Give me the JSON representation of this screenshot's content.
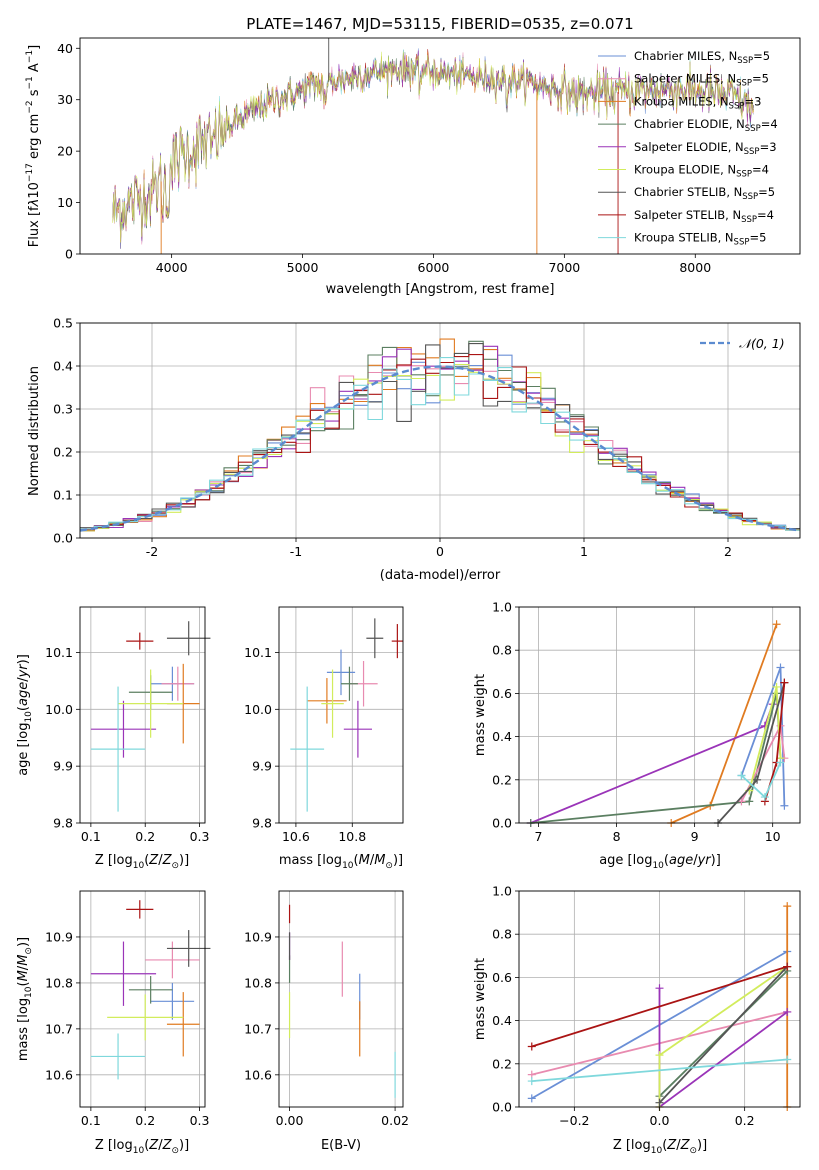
{
  "colors": {
    "Chabrier MILES": "#6a8fd6",
    "Salpeter MILES": "#e88bb0",
    "Kroupa MILES": "#e07b21",
    "Chabrier ELODIE": "#5b7f61",
    "Salpeter ELODIE": "#9a34b8",
    "Kroupa ELODIE": "#d2ec5c",
    "Chabrier STELIB": "#555555",
    "Salpeter STELIB": "#aa1414",
    "Kroupa STELIB": "#7fd8dc",
    "norm_curve": "#5b8bd0"
  },
  "chart_data": [
    {
      "id": "spectrum",
      "type": "line",
      "title": "PLATE=1467, MJD=53115, FIBERID=0535, z=0.071",
      "xlabel": "wavelength [Angstrom, rest frame]",
      "ylabel": "Flux [f_λ 10^-17 erg cm^-2 s^-1 A^-1]",
      "xlim": [
        3300,
        8800
      ],
      "ylim": [
        0,
        42
      ],
      "xticks": [
        4000,
        5000,
        6000,
        7000,
        8000
      ],
      "yticks": [
        0,
        10,
        20,
        30,
        40
      ],
      "grid": false,
      "legend_position": "top-right",
      "legend": [
        {
          "model": "Chabrier MILES",
          "n": "5"
        },
        {
          "model": "Salpeter MILES",
          "n": "5"
        },
        {
          "model": "Kroupa MILES",
          "n": "3"
        },
        {
          "model": "Chabrier ELODIE",
          "n": "4"
        },
        {
          "model": "Salpeter ELODIE",
          "n": "3"
        },
        {
          "model": "Kroupa ELODIE",
          "n": "4"
        },
        {
          "model": "Chabrier STELIB",
          "n": "5"
        },
        {
          "model": "Salpeter STELIB",
          "n": "4"
        },
        {
          "model": "Kroupa STELIB",
          "n": "5"
        }
      ],
      "continuum": {
        "x": [
          3550,
          3700,
          3850,
          3950,
          4050,
          4200,
          4350,
          4500,
          4700,
          4900,
          5100,
          5300,
          5500,
          5700,
          5900,
          6100,
          6300,
          6500,
          6700,
          6900,
          7100,
          7300,
          7500,
          7700,
          7900,
          8100,
          8300,
          8450
        ],
        "y": [
          8,
          10,
          12,
          15,
          19,
          21,
          23,
          26,
          29,
          31,
          33,
          34,
          35,
          36,
          36,
          35,
          34.5,
          34,
          33.5,
          32.5,
          31,
          31.5,
          31.5,
          32,
          32,
          31.5,
          30.5,
          28
        ]
      },
      "spikes": [
        {
          "x": 5200,
          "y": 42
        },
        {
          "x": 3920,
          "y": 0
        },
        {
          "x": 6790,
          "y": 0
        },
        {
          "x": 7410,
          "y": 0
        }
      ]
    },
    {
      "id": "residual-histogram",
      "type": "histogram",
      "xlabel": "(data-model)/error",
      "ylabel": "Normed distribution",
      "xlim": [
        -2.5,
        2.5
      ],
      "ylim": [
        0,
        0.5
      ],
      "xticks": [
        -2,
        -1,
        0,
        1,
        2
      ],
      "yticks": [
        0.0,
        0.1,
        0.2,
        0.3,
        0.4,
        0.5
      ],
      "grid": true,
      "legend_position": "top-right",
      "legend": [
        "𝒩(0, 1)"
      ],
      "bin_width": 0.1,
      "reference_curve": "standard normal pdf"
    },
    {
      "id": "age-vs-Z",
      "type": "errorbar",
      "xlabel": "Z [log10(Z/Z⊙)]",
      "ylabel": "age [log10(age/yr)]",
      "xlim": [
        0.08,
        0.31
      ],
      "ylim": [
        9.8,
        10.18
      ],
      "xticks": [
        0.1,
        0.2,
        0.3
      ],
      "yticks": [
        9.8,
        9.9,
        10.0,
        10.1
      ],
      "grid": true,
      "points": [
        {
          "model": "Chabrier MILES",
          "x": 0.25,
          "xerr": 0.04,
          "y": 10.045,
          "yerr": 0.03
        },
        {
          "model": "Salpeter MILES",
          "x": 0.26,
          "xerr": 0.03,
          "y": 10.045,
          "yerr": 0.03
        },
        {
          "model": "Kroupa MILES",
          "x": 0.27,
          "xerr": 0.03,
          "y": 10.01,
          "yerr": 0.07
        },
        {
          "model": "Chabrier ELODIE",
          "x": 0.21,
          "xerr": 0.04,
          "y": 10.03,
          "yerr": 0.03
        },
        {
          "model": "Salpeter ELODIE",
          "x": 0.16,
          "xerr": 0.06,
          "y": 9.965,
          "yerr": 0.05
        },
        {
          "model": "Kroupa ELODIE",
          "x": 0.21,
          "xerr": 0.06,
          "y": 10.01,
          "yerr": 0.06
        },
        {
          "model": "Chabrier STELIB",
          "x": 0.28,
          "xerr": 0.04,
          "y": 10.125,
          "yerr": 0.03
        },
        {
          "model": "Salpeter STELIB",
          "x": 0.19,
          "xerr": 0.025,
          "y": 10.12,
          "yerr": 0.015
        },
        {
          "model": "Kroupa STELIB",
          "x": 0.15,
          "xerr": 0.05,
          "y": 9.93,
          "yerr": 0.11
        }
      ]
    },
    {
      "id": "age-vs-mass",
      "type": "errorbar",
      "xlabel": "mass [log10(M/M⊙)]",
      "ylabel": "",
      "xlim": [
        10.54,
        10.98
      ],
      "ylim": [
        9.8,
        10.18
      ],
      "xticks": [
        10.6,
        10.8
      ],
      "yticks": [
        9.8,
        9.9,
        10.0,
        10.1
      ],
      "grid": true,
      "points": [
        {
          "model": "Chabrier MILES",
          "x": 10.76,
          "xerr": 0.05,
          "y": 10.065,
          "yerr": 0.04
        },
        {
          "model": "Salpeter MILES",
          "x": 10.84,
          "xerr": 0.05,
          "y": 10.045,
          "yerr": 0.04
        },
        {
          "model": "Kroupa MILES",
          "x": 10.71,
          "xerr": 0.07,
          "y": 10.015,
          "yerr": 0.04
        },
        {
          "model": "Chabrier ELODIE",
          "x": 10.79,
          "xerr": 0.03,
          "y": 10.045,
          "yerr": 0.03
        },
        {
          "model": "Salpeter ELODIE",
          "x": 10.82,
          "xerr": 0.05,
          "y": 9.965,
          "yerr": 0.05
        },
        {
          "model": "Kroupa ELODIE",
          "x": 10.73,
          "xerr": 0.04,
          "y": 10.01,
          "yerr": 0.06
        },
        {
          "model": "Chabrier STELIB",
          "x": 10.88,
          "xerr": 0.03,
          "y": 10.125,
          "yerr": 0.035
        },
        {
          "model": "Salpeter STELIB",
          "x": 10.96,
          "xerr": 0.02,
          "y": 10.12,
          "yerr": 0.03
        },
        {
          "model": "Kroupa STELIB",
          "x": 10.64,
          "xerr": 0.06,
          "y": 9.93,
          "yerr": 0.11
        }
      ]
    },
    {
      "id": "mass-weight-vs-age",
      "type": "line",
      "xlabel": "age [log10(age/yr)]",
      "ylabel": "mass weight",
      "xlim": [
        6.75,
        10.35
      ],
      "ylim": [
        0,
        1.0
      ],
      "xticks": [
        7,
        8,
        9,
        10
      ],
      "yticks": [
        0.0,
        0.2,
        0.4,
        0.6,
        0.8,
        1.0
      ],
      "grid": true,
      "series": [
        {
          "model": "Kroupa MILES",
          "x": [
            8.7,
            9.2,
            10.05
          ],
          "y": [
            0.0,
            0.08,
            0.92
          ]
        },
        {
          "model": "Salpeter ELODIE",
          "x": [
            6.9,
            9.9,
            10.0
          ],
          "y": [
            0.0,
            0.45,
            0.55
          ]
        },
        {
          "model": "Chabrier ELODIE",
          "x": [
            6.9,
            9.7,
            10.05,
            10.1
          ],
          "y": [
            0.0,
            0.1,
            0.6,
            0.3
          ]
        },
        {
          "model": "Chabrier MILES",
          "x": [
            9.6,
            10.1,
            10.15
          ],
          "y": [
            0.22,
            0.72,
            0.08
          ]
        },
        {
          "model": "Salpeter MILES",
          "x": [
            9.6,
            10.1,
            10.15
          ],
          "y": [
            0.1,
            0.45,
            0.3
          ]
        },
        {
          "model": "Kroupa ELODIE",
          "x": [
            9.7,
            10.05,
            10.1
          ],
          "y": [
            0.15,
            0.63,
            0.3
          ]
        },
        {
          "model": "Chabrier STELIB",
          "x": [
            9.3,
            9.8,
            10.15
          ],
          "y": [
            0.0,
            0.2,
            0.65
          ]
        },
        {
          "model": "Salpeter STELIB",
          "x": [
            9.9,
            10.05,
            10.15
          ],
          "y": [
            0.1,
            0.28,
            0.65
          ]
        },
        {
          "model": "Kroupa STELIB",
          "x": [
            9.6,
            9.9,
            10.1
          ],
          "y": [
            0.22,
            0.12,
            0.28
          ]
        }
      ]
    },
    {
      "id": "mass-vs-Z",
      "type": "errorbar",
      "xlabel": "Z [log10(Z/Z⊙)]",
      "ylabel": "mass [log10(M/M⊙)]",
      "xlim": [
        0.08,
        0.31
      ],
      "ylim": [
        10.53,
        11.0
      ],
      "xticks": [
        0.1,
        0.2,
        0.3
      ],
      "yticks": [
        10.6,
        10.7,
        10.8,
        10.9
      ],
      "grid": true,
      "points": [
        {
          "model": "Chabrier MILES",
          "x": 0.25,
          "xerr": 0.04,
          "y": 10.76,
          "yerr": 0.04
        },
        {
          "model": "Salpeter MILES",
          "x": 0.25,
          "xerr": 0.05,
          "y": 10.85,
          "yerr": 0.04
        },
        {
          "model": "Kroupa MILES",
          "x": 0.27,
          "xerr": 0.03,
          "y": 10.71,
          "yerr": 0.07
        },
        {
          "model": "Chabrier ELODIE",
          "x": 0.21,
          "xerr": 0.04,
          "y": 10.785,
          "yerr": 0.03
        },
        {
          "model": "Salpeter ELODIE",
          "x": 0.16,
          "xerr": 0.06,
          "y": 10.82,
          "yerr": 0.07
        },
        {
          "model": "Kroupa ELODIE",
          "x": 0.2,
          "xerr": 0.07,
          "y": 10.725,
          "yerr": 0.05
        },
        {
          "model": "Chabrier STELIB",
          "x": 0.28,
          "xerr": 0.04,
          "y": 10.875,
          "yerr": 0.04
        },
        {
          "model": "Salpeter STELIB",
          "x": 0.19,
          "xerr": 0.025,
          "y": 10.96,
          "yerr": 0.02
        },
        {
          "model": "Kroupa STELIB",
          "x": 0.15,
          "xerr": 0.05,
          "y": 10.64,
          "yerr": 0.05
        }
      ]
    },
    {
      "id": "mass-vs-ebv",
      "type": "errorbar",
      "xlabel": "E(B-V)",
      "ylabel": "",
      "xlim": [
        -0.002,
        0.0215
      ],
      "ylim": [
        10.53,
        11.0
      ],
      "xticks": [
        0.0,
        0.02
      ],
      "xticklabels": [
        "0.00",
        "0.02"
      ],
      "yticks": [
        10.6,
        10.7,
        10.8,
        10.9
      ],
      "grid": true,
      "points": [
        {
          "model": "Chabrier MILES",
          "x": 0.0133,
          "y": 10.77,
          "yerr": 0.05
        },
        {
          "model": "Salpeter MILES",
          "x": 0.01,
          "y": 10.83,
          "yerr": 0.06
        },
        {
          "model": "Kroupa MILES",
          "x": 0.0133,
          "y": 10.7,
          "yerr": 0.06
        },
        {
          "model": "Chabrier ELODIE",
          "x": 0.0,
          "y": 10.83,
          "yerr": 0.03
        },
        {
          "model": "Salpeter ELODIE",
          "x": 0.0,
          "y": 10.88,
          "yerr": 0.03
        },
        {
          "model": "Kroupa ELODIE",
          "x": 0.0,
          "y": 10.73,
          "yerr": 0.05
        },
        {
          "model": "Chabrier STELIB",
          "x": 0.0,
          "y": 10.88,
          "yerr": 0.03
        },
        {
          "model": "Salpeter STELIB",
          "x": 0.0,
          "y": 10.95,
          "yerr": 0.02
        },
        {
          "model": "Kroupa STELIB",
          "x": 0.02,
          "y": 10.6,
          "yerr": 0.05
        }
      ]
    },
    {
      "id": "mass-weight-vs-Z",
      "type": "line",
      "xlabel": "Z [log10(Z/Z⊙)]",
      "ylabel": "mass weight",
      "xlim": [
        -0.33,
        0.33
      ],
      "ylim": [
        0,
        1.0
      ],
      "xticks": [
        -0.2,
        0.0,
        0.2
      ],
      "xticklabels": [
        "−0.2",
        "0.0",
        "0.2"
      ],
      "yticks": [
        0.0,
        0.2,
        0.4,
        0.6,
        0.8,
        1.0
      ],
      "grid": true,
      "series": [
        {
          "model": "Chabrier MILES",
          "x": [
            -0.3,
            0.3
          ],
          "y": [
            0.04,
            0.72
          ]
        },
        {
          "model": "Salpeter MILES",
          "x": [
            -0.3,
            0.3
          ],
          "y": [
            0.15,
            0.44
          ]
        },
        {
          "model": "Kroupa MILES",
          "x": [
            0.3,
            0.3
          ],
          "y": [
            0.0,
            0.93
          ]
        },
        {
          "model": "Chabrier ELODIE",
          "x": [
            0.0,
            0.3
          ],
          "y": [
            0.05,
            0.63
          ]
        },
        {
          "model": "Salpeter ELODIE",
          "x": [
            0.0,
            0.0,
            0.3
          ],
          "y": [
            0.55,
            0.0,
            0.44
          ]
        },
        {
          "model": "Kroupa ELODIE",
          "x": [
            0.0,
            0.0,
            0.3
          ],
          "y": [
            0.0,
            0.24,
            0.65
          ]
        },
        {
          "model": "Chabrier STELIB",
          "x": [
            0.0,
            0.3
          ],
          "y": [
            0.02,
            0.65
          ]
        },
        {
          "model": "Salpeter STELIB",
          "x": [
            -0.3,
            0.3
          ],
          "y": [
            0.28,
            0.65
          ]
        },
        {
          "model": "Kroupa STELIB",
          "x": [
            -0.3,
            0.3
          ],
          "y": [
            0.12,
            0.22
          ]
        }
      ]
    }
  ]
}
